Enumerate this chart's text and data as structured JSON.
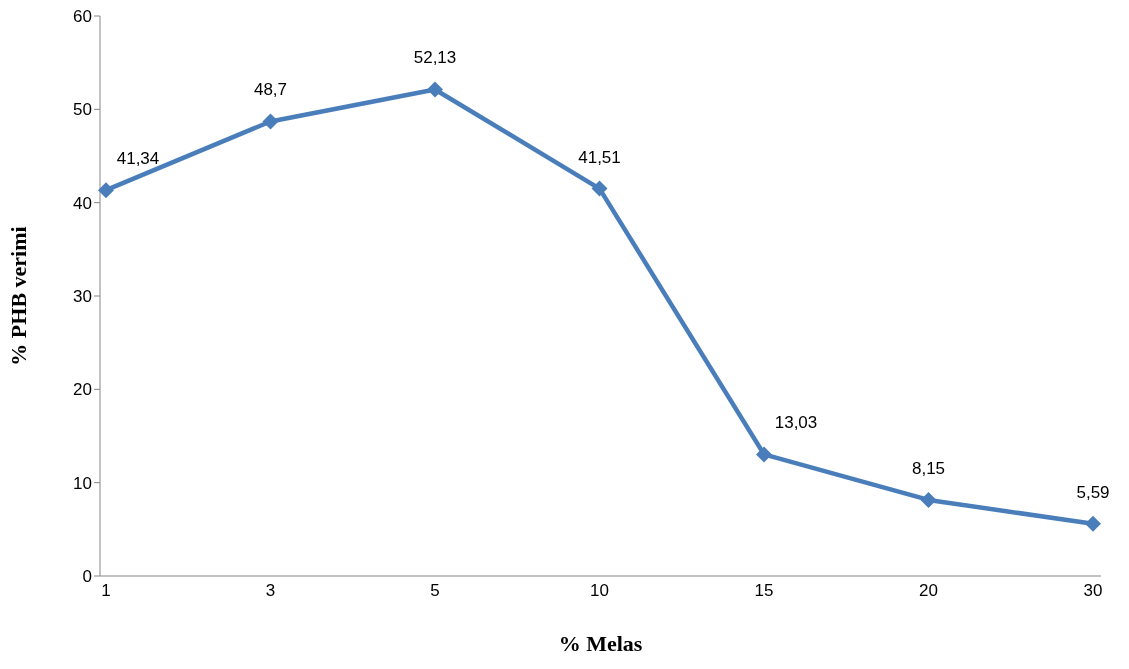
{
  "chart_data": {
    "type": "line",
    "xlabel": "% Melas",
    "ylabel": "% PHB verimi",
    "categories": [
      "1",
      "3",
      "5",
      "10",
      "15",
      "20",
      "30"
    ],
    "series": [
      {
        "color": "#4a7ebb",
        "values": [
          41.34,
          48.7,
          52.13,
          41.51,
          13.03,
          8.15,
          5.59
        ],
        "value_labels": [
          "41,34",
          "48,7",
          "52,13",
          "41,51",
          "13,03",
          "8,15",
          "5,59"
        ]
      }
    ],
    "ylim": [
      0,
      60
    ],
    "yticks": [
      0,
      10,
      20,
      30,
      40,
      50,
      60
    ],
    "grid": false,
    "legend": false,
    "marker": "diamond",
    "line_style": "solid"
  }
}
